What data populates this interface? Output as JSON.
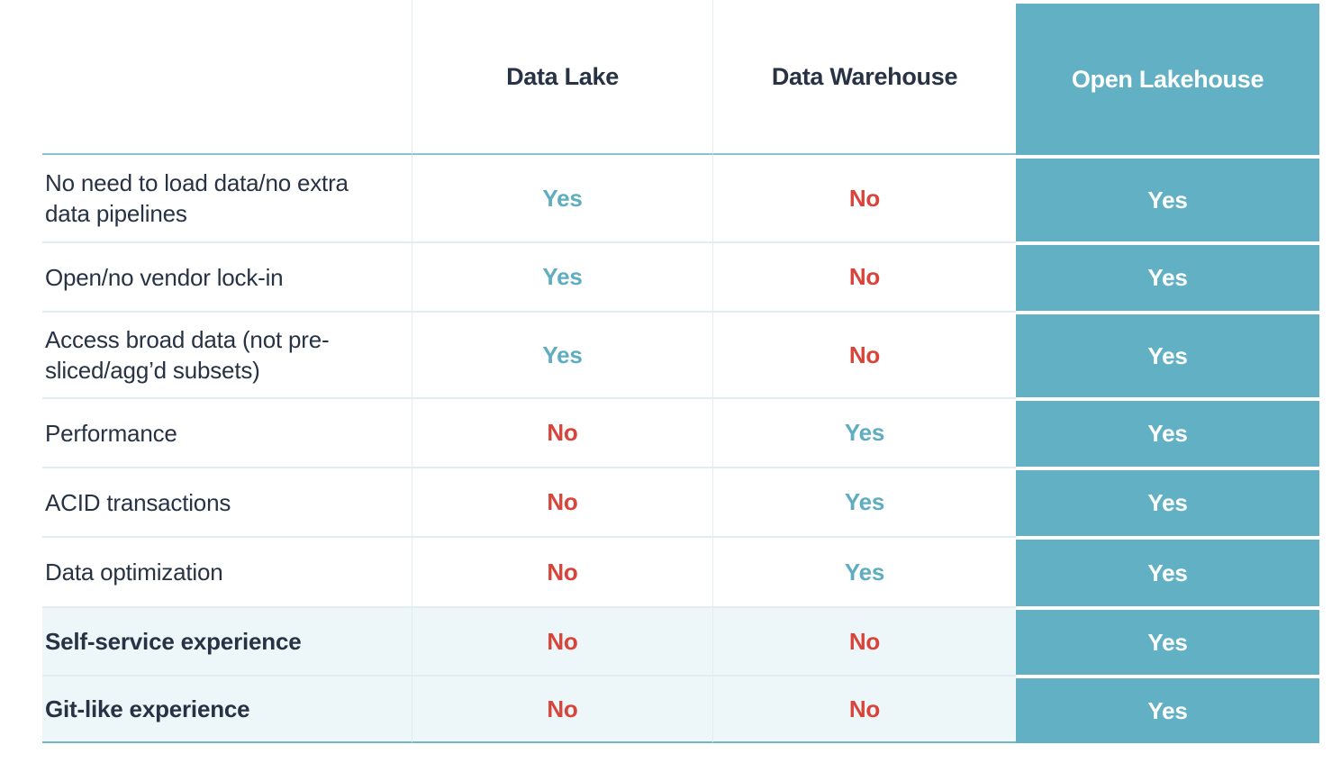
{
  "table": {
    "column_headers": [
      "",
      "Data Lake",
      "Data Warehouse",
      "Open Lakehouse"
    ],
    "rows": [
      {
        "feature": "No need to load data/no extra data pipelines",
        "data_lake": "Yes",
        "data_warehouse": "No",
        "open_lakehouse": "Yes"
      },
      {
        "feature": "Open/no vendor lock-in",
        "data_lake": "Yes",
        "data_warehouse": "No",
        "open_lakehouse": "Yes"
      },
      {
        "feature": "Access broad data (not pre-sliced/agg’d subsets)",
        "data_lake": "Yes",
        "data_warehouse": "No",
        "open_lakehouse": "Yes"
      },
      {
        "feature": "Performance",
        "data_lake": "No",
        "data_warehouse": "Yes",
        "open_lakehouse": "Yes"
      },
      {
        "feature": "ACID transactions",
        "data_lake": "No",
        "data_warehouse": "Yes",
        "open_lakehouse": "Yes"
      },
      {
        "feature": "Data optimization",
        "data_lake": "No",
        "data_warehouse": "Yes",
        "open_lakehouse": "Yes"
      },
      {
        "feature": "Self-service experience",
        "data_lake": "No",
        "data_warehouse": "No",
        "open_lakehouse": "Yes"
      },
      {
        "feature": "Git-like experience",
        "data_lake": "No",
        "data_warehouse": "No",
        "open_lakehouse": "Yes"
      }
    ],
    "colors": {
      "highlight_col": "#61b0c4",
      "highlight_text": "#ffffff",
      "yes_text": "#5fadc0",
      "no_text": "#d9443a",
      "dark_text": "#273344",
      "alt_row_bg": "#edf6f9",
      "divider": "#e2edf0",
      "rule_top": "#8cc2d3",
      "rule_bottom": "#72b8c8"
    }
  }
}
